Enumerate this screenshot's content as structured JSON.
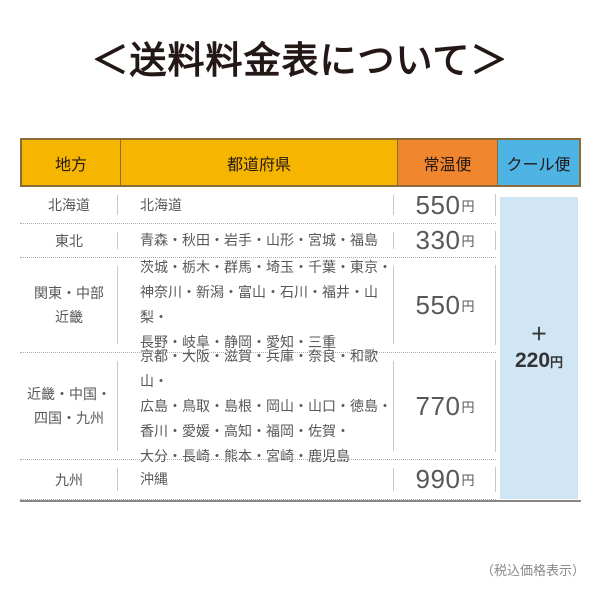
{
  "title": "＜送料料金表について＞",
  "note": "（税込価格表示）",
  "colors": {
    "header_yellow": "#F6B600",
    "header_orange": "#F0872E",
    "header_blue": "#4DB4E4",
    "cool_fill": "#D0E6F4",
    "header_border": "#8A6B3A",
    "body_text": "#595757"
  },
  "table": {
    "headers": [
      {
        "label": "地方"
      },
      {
        "label": "都道府県"
      },
      {
        "label": "常温便"
      },
      {
        "label": "クール便"
      }
    ],
    "price_unit": "円",
    "rows": [
      {
        "region": "北海道",
        "prefectures": "北海道",
        "price": "550"
      },
      {
        "region": "東北",
        "prefectures": "青森・秋田・岩手・山形・宮城・福島",
        "price": "330"
      },
      {
        "region": "関東・中部\n近畿",
        "prefectures": "茨城・栃木・群馬・埼玉・千葉・東京・\n神奈川・新潟・富山・石川・福井・山梨・\n長野・岐阜・静岡・愛知・三重",
        "price": "550"
      },
      {
        "region": "近畿・中国・\n四国・九州",
        "prefectures": "京都・大阪・滋賀・兵庫・奈良・和歌山・\n広島・鳥取・島根・岡山・山口・徳島・\n香川・愛媛・高知・福岡・佐賀・\n大分・長崎・熊本・宮崎・鹿児島",
        "price": "770"
      },
      {
        "region": "九州",
        "prefectures": "沖縄",
        "price": "990"
      }
    ],
    "cool_surcharge": {
      "plus": "＋",
      "value": "220",
      "unit": "円"
    }
  }
}
